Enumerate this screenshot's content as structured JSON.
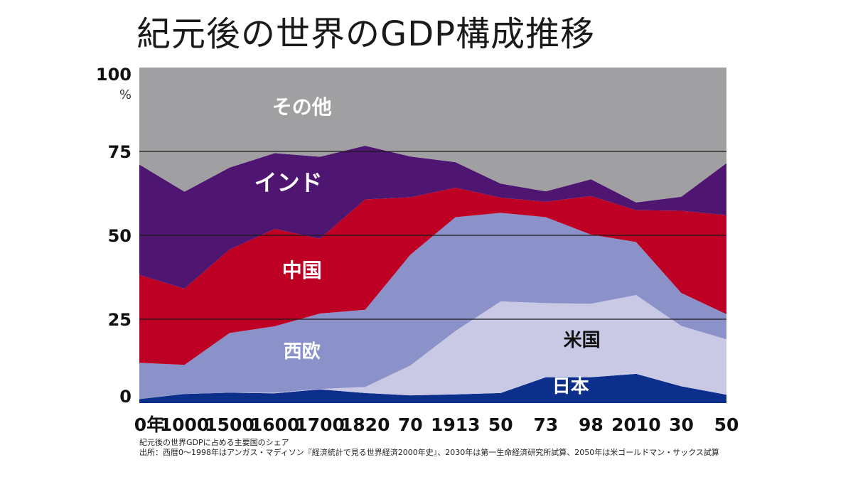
{
  "title": "紀元後の世界のGDP構成推移",
  "caption": {
    "line1": "紀元後の世界GDPに占める主要国のシェア",
    "line2": "出所：西暦0〜1998年はアンガス・マディソン『経済統計で見る世界経済2000年史』、2030年は第一生命経済研究所試算、2050年は米ゴールドマン・サックス試算"
  },
  "chart_data": {
    "type": "area",
    "stacked": true,
    "categories": [
      "0年",
      "1000",
      "1500",
      "1600",
      "1700",
      "1820",
      "70",
      "1913",
      "50",
      "73",
      "98",
      "2010",
      "30",
      "50"
    ],
    "ylim": [
      0,
      100
    ],
    "y_ticks": [
      "0",
      "25",
      "50",
      "75",
      "100"
    ],
    "y_unit": "%",
    "grid": "horizontal at 25, 50, 75",
    "series": [
      {
        "name": "日本",
        "color": "#0d2f8c",
        "label_color": "#ffffff",
        "values": [
          1.2,
          2.7,
          3.1,
          2.9,
          4.1,
          3.0,
          2.3,
          2.6,
          3.0,
          7.7,
          7.7,
          8.7,
          5.0,
          2.5
        ]
      },
      {
        "name": "米国",
        "color": "#c9c9e6",
        "label_color": "#111111",
        "values": [
          0.0,
          0.0,
          0.0,
          0.2,
          0.1,
          1.8,
          8.9,
          18.9,
          27.3,
          22.1,
          21.9,
          23.5,
          18.0,
          16.5
        ]
      },
      {
        "name": "西欧",
        "color": "#8b91c9",
        "label_color": "#ffffff",
        "values": [
          10.8,
          8.7,
          17.8,
          19.8,
          22.5,
          23.0,
          33.0,
          33.9,
          26.4,
          25.6,
          20.6,
          15.8,
          9.8,
          7.5
        ]
      },
      {
        "name": "中国",
        "color": "#bd0023",
        "label_color": "#ffffff",
        "values": [
          26.2,
          22.7,
          24.9,
          29.0,
          22.3,
          32.9,
          17.1,
          8.8,
          4.5,
          4.6,
          11.5,
          9.5,
          24.5,
          29.5
        ]
      },
      {
        "name": "インド",
        "color": "#4f1671",
        "label_color": "#ffffff",
        "values": [
          32.9,
          28.9,
          24.4,
          22.6,
          24.4,
          16.0,
          12.2,
          7.6,
          4.2,
          3.1,
          5.0,
          2.3,
          4.2,
          15.5
        ]
      },
      {
        "name": "その他",
        "color": "#a0a0a2",
        "label_color": "#ffffff",
        "values": [
          28.9,
          37.0,
          29.8,
          25.5,
          26.6,
          23.3,
          26.5,
          28.2,
          34.6,
          36.9,
          33.3,
          40.2,
          38.5,
          28.5
        ]
      }
    ]
  }
}
